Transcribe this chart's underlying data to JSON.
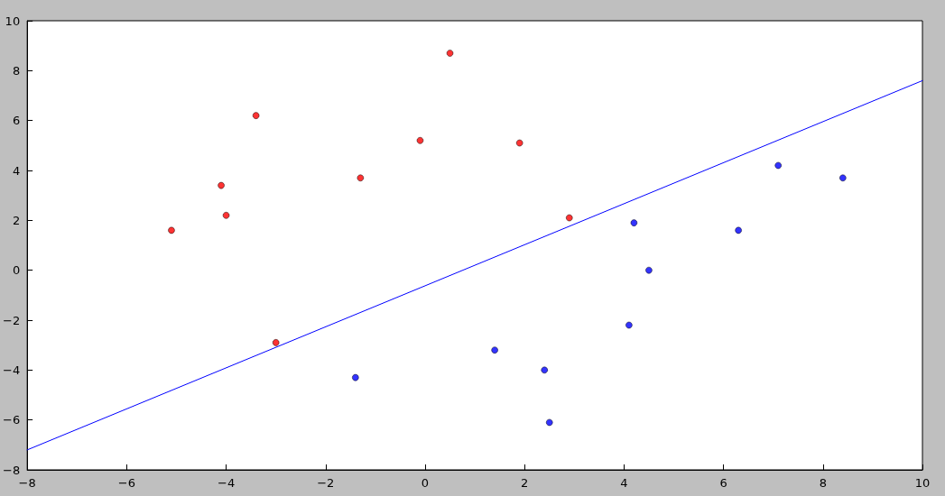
{
  "chart_data": {
    "type": "scatter",
    "marker": "circle",
    "grid": false,
    "xlim": [
      -8,
      10
    ],
    "ylim": [
      -8,
      10
    ],
    "xticks": [
      {
        "value": -8,
        "label": "−8"
      },
      {
        "value": -6,
        "label": "−6"
      },
      {
        "value": -4,
        "label": "−4"
      },
      {
        "value": -2,
        "label": "−2"
      },
      0,
      2,
      4,
      6,
      8,
      10
    ],
    "yticks": [
      {
        "value": -8,
        "label": "−8"
      },
      {
        "value": -6,
        "label": "−6"
      },
      {
        "value": -4,
        "label": "−4"
      },
      {
        "value": -2,
        "label": "−2"
      },
      0,
      2,
      4,
      6,
      8,
      10
    ],
    "series": [
      {
        "color": "#ff0000",
        "x": [
          -5.1,
          -4.1,
          -4.0,
          -3.4,
          -3.0,
          -1.3,
          -0.1,
          0.5,
          1.9,
          2.9
        ],
        "values": [
          1.6,
          3.4,
          2.2,
          6.2,
          -2.9,
          3.7,
          5.2,
          8.7,
          5.1,
          2.1
        ]
      },
      {
        "color": "#0000ff",
        "x": [
          -1.4,
          1.4,
          2.4,
          2.5,
          4.1,
          4.2,
          4.5,
          6.3,
          7.1,
          8.4
        ],
        "values": [
          -4.3,
          -3.2,
          -4.0,
          -6.1,
          -2.2,
          1.9,
          0.0,
          1.6,
          4.2,
          3.7
        ]
      },
      {
        "type": "line",
        "color": "#0000ff",
        "marker": "none",
        "line_style": "solid",
        "x": [
          -8,
          10
        ],
        "values": [
          -7.2,
          7.6
        ]
      }
    ]
  }
}
